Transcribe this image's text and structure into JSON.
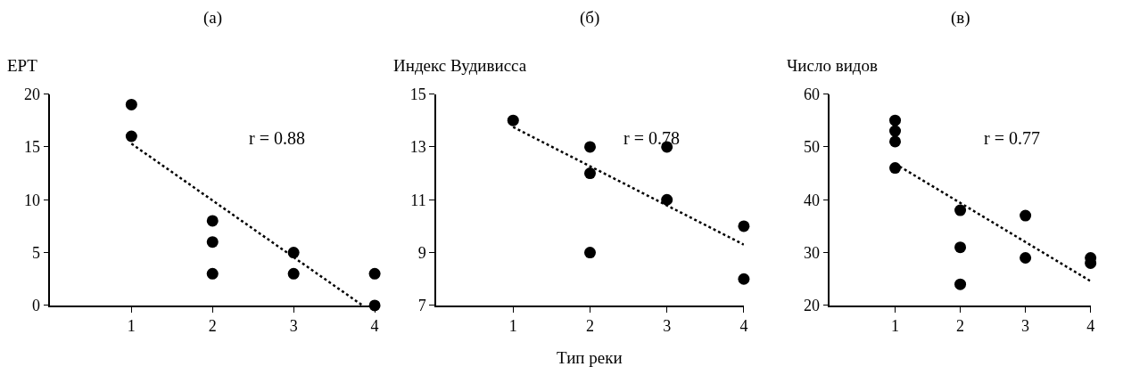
{
  "chart_data": [
    {
      "type": "scatter",
      "title": "(a)",
      "ylabel": "EPT",
      "annotations": [
        "r = 0.88"
      ],
      "xlim": [
        0,
        4
      ],
      "xticks": [
        1,
        2,
        3,
        4
      ],
      "ylim": [
        0,
        20
      ],
      "yticks": [
        0,
        5,
        10,
        15,
        20
      ],
      "series": [
        {
          "marker": "circle",
          "color": "#000000",
          "x": [
            1,
            1,
            2,
            2,
            2,
            3,
            3,
            4,
            4
          ],
          "values": [
            19,
            16,
            8,
            6,
            3,
            5,
            3,
            3,
            0
          ]
        },
        {
          "type": "line",
          "line_style": "dotted",
          "color": "#000000",
          "x": [
            1,
            3.85
          ],
          "values": [
            15.3,
            0
          ]
        }
      ]
    },
    {
      "type": "scatter",
      "title": "(б)",
      "ylabel": "Индекс Вудивисса",
      "xlabel": "Тип реки",
      "annotations": [
        "r = 0.78"
      ],
      "xlim": [
        0,
        4
      ],
      "xticks": [
        1,
        2,
        3,
        4
      ],
      "ylim": [
        7,
        15
      ],
      "yticks": [
        7,
        9,
        11,
        13,
        15
      ],
      "series": [
        {
          "marker": "circle",
          "color": "#000000",
          "x": [
            1,
            2,
            2,
            2,
            3,
            3,
            4,
            4
          ],
          "values": [
            14,
            13,
            12,
            9,
            13,
            11,
            10,
            8
          ]
        },
        {
          "type": "line",
          "line_style": "dotted",
          "color": "#000000",
          "x": [
            1,
            4
          ],
          "values": [
            13.75,
            9.3
          ]
        }
      ]
    },
    {
      "type": "scatter",
      "title": "(в)",
      "ylabel": "Число видов",
      "annotations": [
        "r = 0.77"
      ],
      "xlim": [
        0,
        4
      ],
      "xticks": [
        1,
        2,
        3,
        4
      ],
      "ylim": [
        20,
        60
      ],
      "yticks": [
        20,
        30,
        40,
        50,
        60
      ],
      "series": [
        {
          "marker": "circle",
          "color": "#000000",
          "x": [
            1,
            1,
            1,
            1,
            2,
            2,
            2,
            3,
            3,
            4,
            4
          ],
          "values": [
            55,
            53,
            51,
            46,
            38,
            31,
            24,
            37,
            29,
            29,
            28
          ]
        },
        {
          "type": "line",
          "line_style": "dotted",
          "color": "#000000",
          "x": [
            1,
            4
          ],
          "values": [
            46.8,
            24.6
          ]
        }
      ]
    }
  ]
}
